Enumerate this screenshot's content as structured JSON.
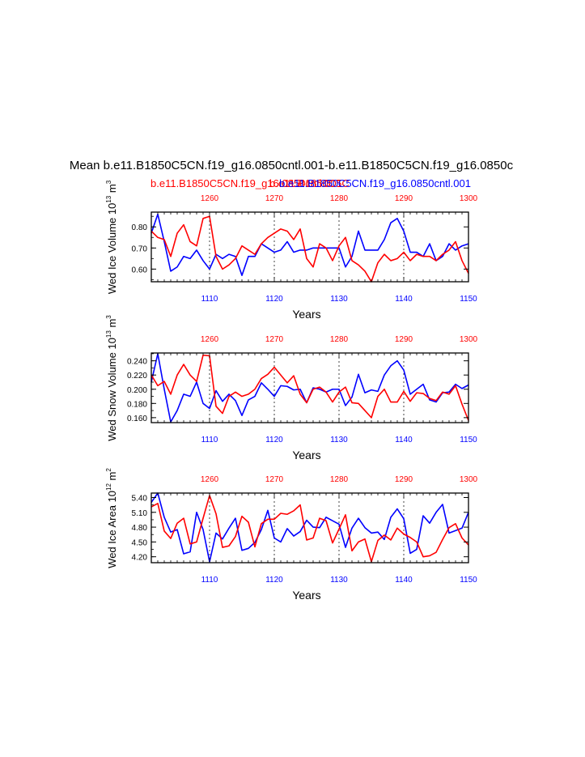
{
  "title_main": "Mean b.e11.B1850C5CN.f19_g16.0850cntl.001-b.e11.B1850C5CN.f19_g16.0850c",
  "subtitle_red": "b.e11.B1850C5CN.f19_g16.0850cntl.001",
  "subtitle_blue": "b.e11.B1850C5CN.f19_g16.0850cntl.001",
  "subtitle_overlap": "b.e11.B1850C5C",
  "colors": {
    "red": "#ff0000",
    "blue": "#0000ff",
    "axis": "#000000"
  },
  "chart_data": [
    {
      "type": "line",
      "ylabel": "Wed Ice Volume 10",
      "ylabel_exp": "13",
      "ylabel_unit": "m",
      "ylabel_unit_exp": "3",
      "xlabel": "Years",
      "ylim": [
        0.54,
        0.87
      ],
      "yticks": [
        0.6,
        0.7,
        0.8
      ],
      "ytick_labels": [
        "0.60",
        "0.70",
        "0.80"
      ],
      "x_bottom": {
        "range": [
          1101,
          1150
        ],
        "ticks": [
          1110,
          1120,
          1130,
          1140,
          1150
        ]
      },
      "x_top": {
        "range": [
          1251,
          1300
        ],
        "ticks": [
          1260,
          1270,
          1280,
          1290,
          1300
        ]
      },
      "series": [
        {
          "name": "blue",
          "axis": "bottom",
          "color": "#0000ff",
          "values": [
            0.77,
            0.86,
            0.73,
            0.59,
            0.61,
            0.66,
            0.65,
            0.69,
            0.64,
            0.6,
            0.67,
            0.65,
            0.67,
            0.66,
            0.57,
            0.66,
            0.66,
            0.72,
            0.7,
            0.68,
            0.69,
            0.73,
            0.68,
            0.69,
            0.69,
            0.7,
            0.7,
            0.7,
            0.7,
            0.7,
            0.61,
            0.66,
            0.78,
            0.69,
            0.69,
            0.69,
            0.74,
            0.82,
            0.84,
            0.78,
            0.68,
            0.68,
            0.66,
            0.72,
            0.64,
            0.66,
            0.72,
            0.69,
            0.71,
            0.72
          ]
        },
        {
          "name": "red",
          "axis": "top",
          "color": "#ff0000",
          "values": [
            0.78,
            0.75,
            0.74,
            0.66,
            0.77,
            0.81,
            0.73,
            0.71,
            0.84,
            0.85,
            0.66,
            0.6,
            0.62,
            0.65,
            0.71,
            0.69,
            0.67,
            0.72,
            0.75,
            0.77,
            0.79,
            0.78,
            0.74,
            0.79,
            0.65,
            0.61,
            0.72,
            0.7,
            0.64,
            0.71,
            0.75,
            0.64,
            0.62,
            0.59,
            0.54,
            0.63,
            0.67,
            0.64,
            0.65,
            0.68,
            0.64,
            0.67,
            0.66,
            0.66,
            0.64,
            0.67,
            0.69,
            0.73,
            0.64,
            0.58
          ]
        }
      ]
    },
    {
      "type": "line",
      "ylabel": "Wed Snow Volume 10",
      "ylabel_exp": "13",
      "ylabel_unit": "m",
      "ylabel_unit_exp": "3",
      "xlabel": "Years",
      "ylim": [
        0.153,
        0.251
      ],
      "yticks": [
        0.16,
        0.18,
        0.2,
        0.22,
        0.24
      ],
      "ytick_labels": [
        "0.160",
        "0.180",
        "0.200",
        "0.220",
        "0.240"
      ],
      "x_bottom": {
        "range": [
          1101,
          1150
        ],
        "ticks": [
          1110,
          1120,
          1130,
          1140,
          1150
        ]
      },
      "x_top": {
        "range": [
          1251,
          1300
        ],
        "ticks": [
          1260,
          1270,
          1280,
          1290,
          1300
        ]
      },
      "series": [
        {
          "name": "blue",
          "axis": "bottom",
          "color": "#0000ff",
          "values": [
            0.21,
            0.25,
            0.2,
            0.154,
            0.17,
            0.193,
            0.19,
            0.21,
            0.18,
            0.173,
            0.198,
            0.183,
            0.193,
            0.184,
            0.163,
            0.185,
            0.19,
            0.209,
            0.2,
            0.19,
            0.205,
            0.204,
            0.199,
            0.2,
            0.181,
            0.202,
            0.2,
            0.196,
            0.2,
            0.2,
            0.177,
            0.189,
            0.221,
            0.195,
            0.199,
            0.197,
            0.22,
            0.233,
            0.24,
            0.227,
            0.193,
            0.2,
            0.207,
            0.185,
            0.182,
            0.195,
            0.196,
            0.207,
            0.201,
            0.206
          ]
        },
        {
          "name": "red",
          "axis": "top",
          "color": "#ff0000",
          "values": [
            0.22,
            0.205,
            0.211,
            0.193,
            0.22,
            0.235,
            0.22,
            0.211,
            0.248,
            0.247,
            0.176,
            0.166,
            0.19,
            0.196,
            0.19,
            0.193,
            0.2,
            0.215,
            0.221,
            0.231,
            0.22,
            0.209,
            0.219,
            0.193,
            0.181,
            0.2,
            0.203,
            0.196,
            0.182,
            0.196,
            0.203,
            0.181,
            0.18,
            0.17,
            0.16,
            0.19,
            0.2,
            0.182,
            0.182,
            0.197,
            0.183,
            0.195,
            0.194,
            0.187,
            0.184,
            0.196,
            0.193,
            0.205,
            0.179,
            0.156
          ]
        }
      ]
    },
    {
      "type": "line",
      "ylabel": "Wed Ice Area 10",
      "ylabel_exp": "12",
      "ylabel_unit": "m",
      "ylabel_unit_exp": "2",
      "xlabel": "Years",
      "ylim": [
        4.08,
        5.49
      ],
      "yticks": [
        4.2,
        4.5,
        4.8,
        5.1,
        5.4
      ],
      "ytick_labels": [
        "4.20",
        "4.50",
        "4.80",
        "5.10",
        "5.40"
      ],
      "x_bottom": {
        "range": [
          1101,
          1150
        ],
        "ticks": [
          1110,
          1120,
          1130,
          1140,
          1150
        ]
      },
      "x_top": {
        "range": [
          1251,
          1300
        ],
        "ticks": [
          1260,
          1270,
          1280,
          1290,
          1300
        ]
      },
      "series": [
        {
          "name": "blue",
          "axis": "bottom",
          "color": "#0000ff",
          "values": [
            5.3,
            5.49,
            5.0,
            4.7,
            4.75,
            4.26,
            4.3,
            5.1,
            4.75,
            4.1,
            4.68,
            4.56,
            4.78,
            4.98,
            4.33,
            4.37,
            4.49,
            4.75,
            5.14,
            4.58,
            4.5,
            4.77,
            4.62,
            4.71,
            4.94,
            4.8,
            4.79,
            5.0,
            4.93,
            4.86,
            4.39,
            4.78,
            4.98,
            4.79,
            4.68,
            4.7,
            4.55,
            5.0,
            5.17,
            4.97,
            4.27,
            4.35,
            5.03,
            4.88,
            5.1,
            5.26,
            4.68,
            4.73,
            4.78,
            5.1
          ]
        },
        {
          "name": "red",
          "axis": "top",
          "color": "#ff0000",
          "values": [
            5.21,
            5.28,
            4.72,
            4.57,
            4.88,
            4.98,
            4.46,
            4.5,
            4.98,
            5.44,
            5.07,
            4.39,
            4.42,
            4.61,
            5.02,
            4.9,
            4.4,
            4.87,
            4.96,
            4.96,
            5.08,
            5.06,
            5.13,
            5.25,
            4.54,
            4.58,
            4.98,
            4.93,
            4.48,
            4.76,
            5.05,
            4.32,
            4.5,
            4.56,
            4.1,
            4.53,
            4.64,
            4.54,
            4.78,
            4.66,
            4.59,
            4.5,
            4.2,
            4.22,
            4.29,
            4.55,
            4.79,
            4.87,
            4.58,
            4.44
          ]
        }
      ]
    }
  ]
}
